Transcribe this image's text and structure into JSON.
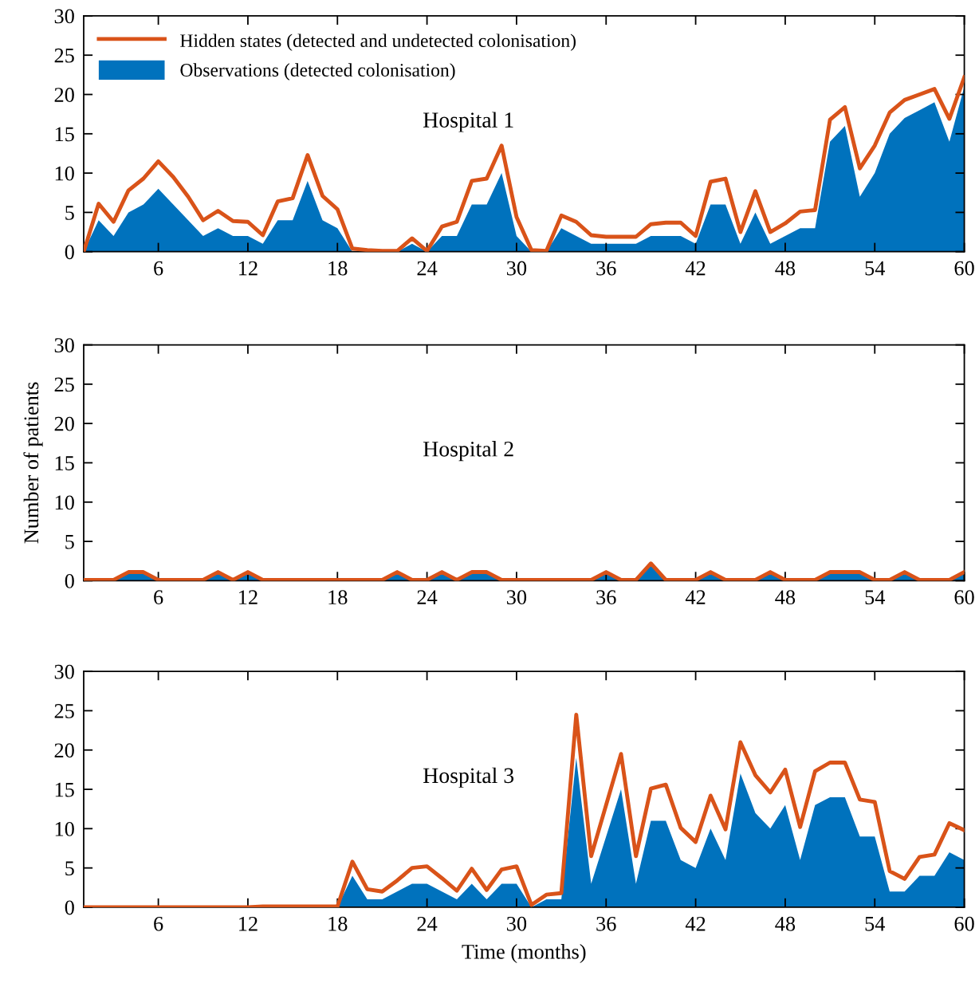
{
  "chart_data": [
    {
      "type": "area",
      "annotations": [
        "Hospital 1"
      ],
      "x": [
        1,
        2,
        3,
        4,
        5,
        6,
        7,
        8,
        9,
        10,
        11,
        12,
        13,
        14,
        15,
        16,
        17,
        18,
        19,
        20,
        21,
        22,
        23,
        24,
        25,
        26,
        27,
        28,
        29,
        30,
        31,
        32,
        33,
        34,
        35,
        36,
        37,
        38,
        39,
        40,
        41,
        42,
        43,
        44,
        45,
        46,
        47,
        48,
        49,
        50,
        51,
        52,
        53,
        54,
        55,
        56,
        57,
        58,
        59,
        60
      ],
      "xlim": [
        1,
        60
      ],
      "xticks": [
        6,
        12,
        18,
        24,
        30,
        36,
        42,
        48,
        54,
        60
      ],
      "ylim": [
        0,
        30
      ],
      "yticks": [
        0,
        5,
        10,
        15,
        20,
        25,
        30
      ],
      "legend": "top left",
      "grid": false,
      "series": [
        {
          "name": "Hidden states (detected and undetected colonisation)",
          "type": "line",
          "color": "#d95319",
          "values": [
            0,
            6.1,
            3.8,
            7.8,
            9.3,
            11.5,
            9.5,
            7,
            4,
            5.2,
            3.9,
            3.8,
            2.1,
            6.4,
            6.8,
            12.3,
            7.1,
            5.4,
            0.4,
            0.2,
            0.1,
            0.1,
            1.7,
            0.1,
            3.2,
            3.8,
            9,
            9.3,
            13.5,
            4.4,
            0.2,
            0.1,
            4.6,
            3.8,
            2.1,
            1.9,
            1.9,
            1.9,
            3.5,
            3.7,
            3.7,
            2,
            8.9,
            9.3,
            2.5,
            7.7,
            2.5,
            3.6,
            5.1,
            5.3,
            16.8,
            18.4,
            10.6,
            13.5,
            17.7,
            19.3,
            20,
            20.7,
            16.9,
            22.2
          ]
        },
        {
          "name": "Observations (detected colonisation)",
          "color": "#0072bd",
          "values": [
            0,
            4,
            2,
            5,
            6,
            8,
            6,
            4,
            2,
            3,
            2,
            2,
            1,
            4,
            4,
            9,
            4,
            3,
            0,
            0,
            0,
            0,
            1,
            0,
            2,
            2,
            6,
            6,
            10,
            2,
            0,
            0,
            3,
            2,
            1,
            1,
            1,
            1,
            2,
            2,
            2,
            1,
            6,
            6,
            1,
            5,
            1,
            2,
            3,
            3,
            14,
            16,
            7,
            10,
            15,
            17,
            18,
            19,
            14,
            21
          ]
        }
      ]
    },
    {
      "type": "area",
      "ylabel": "Number of patients",
      "annotations": [
        "Hospital 2"
      ],
      "x": [
        1,
        2,
        3,
        4,
        5,
        6,
        7,
        8,
        9,
        10,
        11,
        12,
        13,
        14,
        15,
        16,
        17,
        18,
        19,
        20,
        21,
        22,
        23,
        24,
        25,
        26,
        27,
        28,
        29,
        30,
        31,
        32,
        33,
        34,
        35,
        36,
        37,
        38,
        39,
        40,
        41,
        42,
        43,
        44,
        45,
        46,
        47,
        48,
        49,
        50,
        51,
        52,
        53,
        54,
        55,
        56,
        57,
        58,
        59,
        60
      ],
      "xlim": [
        1,
        60
      ],
      "xticks": [
        6,
        12,
        18,
        24,
        30,
        36,
        42,
        48,
        54,
        60
      ],
      "ylim": [
        0,
        30
      ],
      "yticks": [
        0,
        5,
        10,
        15,
        20,
        25,
        30
      ],
      "grid": false,
      "series": [
        {
          "type": "line",
          "color": "#d95319",
          "values": [
            0.1,
            0.1,
            0.1,
            1.1,
            1.1,
            0.1,
            0.1,
            0.1,
            0.1,
            1.1,
            0.1,
            1.1,
            0.1,
            0.1,
            0.1,
            0.1,
            0.1,
            0.1,
            0.1,
            0.1,
            0.1,
            1.1,
            0.1,
            0.1,
            1.1,
            0.1,
            1.1,
            1.1,
            0.1,
            0.1,
            0.1,
            0.1,
            0.1,
            0.1,
            0.1,
            1.1,
            0.1,
            0.1,
            2.2,
            0.1,
            0.1,
            0.1,
            1.1,
            0.1,
            0.1,
            0.1,
            1.1,
            0.1,
            0.1,
            0.1,
            1.1,
            1.1,
            1.1,
            0.1,
            0.1,
            1.1,
            0.1,
            0.1,
            0.1,
            1.1
          ]
        },
        {
          "color": "#0072bd",
          "values": [
            0,
            0,
            0,
            1,
            1,
            0,
            0,
            0,
            0,
            1,
            0,
            1,
            0,
            0,
            0,
            0,
            0,
            0,
            0,
            0,
            0,
            1,
            0,
            0,
            1,
            0,
            1,
            1,
            0,
            0,
            0,
            0,
            0,
            0,
            0,
            1,
            0,
            0,
            2,
            0,
            0,
            0,
            1,
            0,
            0,
            0,
            1,
            0,
            0,
            0,
            1,
            1,
            1,
            0,
            0,
            1,
            0,
            0,
            0,
            1
          ]
        }
      ]
    },
    {
      "type": "area",
      "xlabel": "Time (months)",
      "annotations": [
        "Hospital 3"
      ],
      "x": [
        1,
        2,
        3,
        4,
        5,
        6,
        7,
        8,
        9,
        10,
        11,
        12,
        13,
        14,
        15,
        16,
        17,
        18,
        19,
        20,
        21,
        22,
        23,
        24,
        25,
        26,
        27,
        28,
        29,
        30,
        31,
        32,
        33,
        34,
        35,
        36,
        37,
        38,
        39,
        40,
        41,
        42,
        43,
        44,
        45,
        46,
        47,
        48,
        49,
        50,
        51,
        52,
        53,
        54,
        55,
        56,
        57,
        58,
        59,
        60
      ],
      "xlim": [
        1,
        60
      ],
      "xticks": [
        6,
        12,
        18,
        24,
        30,
        36,
        42,
        48,
        54,
        60
      ],
      "ylim": [
        0,
        30
      ],
      "yticks": [
        0,
        5,
        10,
        15,
        20,
        25,
        30
      ],
      "grid": false,
      "series": [
        {
          "type": "line",
          "color": "#d95319",
          "values": [
            0,
            0,
            0,
            0,
            0,
            0,
            0,
            0,
            0,
            0,
            0,
            0,
            0.1,
            0.1,
            0.1,
            0.1,
            0.1,
            0.1,
            5.8,
            2.3,
            2,
            3.4,
            5,
            5.2,
            3.7,
            2.1,
            4.9,
            2.2,
            4.8,
            5.2,
            0.3,
            1.6,
            1.8,
            24.5,
            6.5,
            13,
            19.5,
            6.5,
            15.1,
            15.6,
            10.1,
            8.3,
            14.2,
            9.9,
            21,
            16.8,
            14.6,
            17.5,
            10.2,
            17.3,
            18.4,
            18.4,
            13.7,
            13.4,
            4.6,
            3.6,
            6.4,
            6.7,
            10.7,
            9.8
          ]
        },
        {
          "color": "#0072bd",
          "values": [
            0,
            0,
            0,
            0,
            0,
            0,
            0,
            0,
            0,
            0,
            0,
            0,
            0,
            0,
            0,
            0,
            0,
            0,
            4,
            1,
            1,
            2,
            3,
            3,
            2,
            1,
            3,
            1,
            3,
            3,
            0,
            1,
            1,
            19,
            3,
            9,
            15,
            3,
            11,
            11,
            6,
            5,
            10,
            6,
            17,
            12,
            10,
            13,
            6,
            13,
            14,
            14,
            9,
            9,
            2,
            2,
            4,
            4,
            7,
            6
          ]
        }
      ]
    }
  ]
}
